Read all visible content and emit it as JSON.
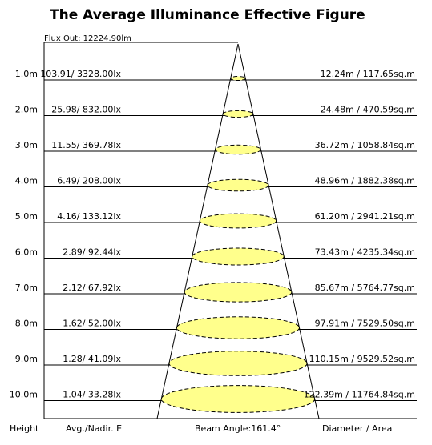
{
  "title": "The Average Illuminance Effective Figure",
  "flux_out": "Flux Out: 12224.90lm",
  "rows": [
    {
      "height": "1.0m",
      "illuminance": "103.91/ 3328.00lx",
      "diameter_area": "12.24m / 117.65sq.m"
    },
    {
      "height": "2.0m",
      "illuminance": "25.98/ 832.00lx",
      "diameter_area": "24.48m / 470.59sq.m"
    },
    {
      "height": "3.0m",
      "illuminance": "11.55/ 369.78lx",
      "diameter_area": "36.72m / 1058.84sq.m"
    },
    {
      "height": "4.0m",
      "illuminance": "6.49/ 208.00lx",
      "diameter_area": "48.96m / 1882.38sq.m"
    },
    {
      "height": "5.0m",
      "illuminance": "4.16/ 133.12lx",
      "diameter_area": "61.20m / 2941.21sq.m"
    },
    {
      "height": "6.0m",
      "illuminance": "2.89/ 92.44lx",
      "diameter_area": "73.43m / 4235.34sq.m"
    },
    {
      "height": "7.0m",
      "illuminance": "2.12/ 67.92lx",
      "diameter_area": "85.67m / 5764.77sq.m"
    },
    {
      "height": "8.0m",
      "illuminance": "1.62/ 52.00lx",
      "diameter_area": "97.91m / 7529.50sq.m"
    },
    {
      "height": "9.0m",
      "illuminance": "1.28/ 41.09lx",
      "diameter_area": "110.15m / 9529.52sq.m"
    },
    {
      "height": "10.0m",
      "illuminance": "1.04/ 33.28lx",
      "diameter_area": "122.39m / 11764.84sq.m"
    }
  ],
  "footer": {
    "height": "Height",
    "illuminance": "Avg./Nadir. E",
    "beam_angle": "Beam Angle:161.4°",
    "diameter_area": "Diameter / Area"
  }
}
